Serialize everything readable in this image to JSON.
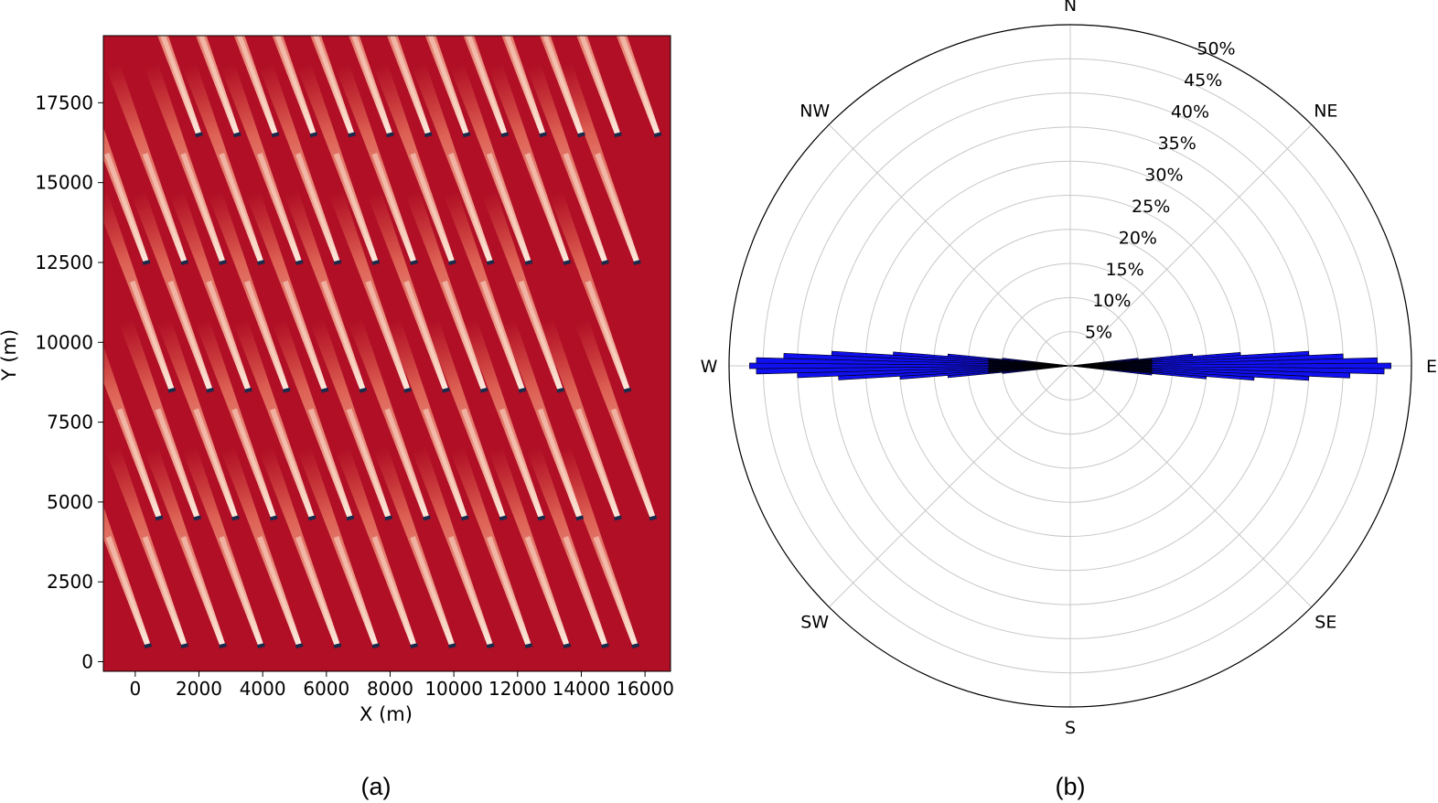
{
  "chart_data": [
    {
      "type": "heatmap",
      "panel_label": "(a)",
      "xlabel": "X (m)",
      "ylabel": "Y (m)",
      "xlim": [
        -1000,
        16800
      ],
      "ylim": [
        -300,
        19600
      ],
      "x_ticks": [
        0,
        2000,
        4000,
        6000,
        8000,
        10000,
        12000,
        14000,
        16000
      ],
      "x_tick_labels": [
        "0",
        "2000",
        "4000",
        "6000",
        "8000",
        "10000",
        "12000",
        "14000",
        "16000"
      ],
      "y_ticks": [
        0,
        2500,
        5000,
        7500,
        10000,
        12500,
        15000,
        17500
      ],
      "y_tick_labels": [
        "0",
        "2500",
        "5000",
        "7500",
        "10000",
        "12500",
        "15000",
        "17500"
      ],
      "colors": {
        "background": "#b00f25",
        "wake_core": "#fbe2d2",
        "wake_mid": "#e7644d",
        "turbine": "#1b2a4a"
      },
      "turbine_rows": [
        {
          "y": 500,
          "x": [
            400,
            1550,
            2750,
            3950,
            5150,
            6350,
            7550,
            8750,
            9950,
            11150,
            12350,
            13550,
            14750,
            15700
          ]
        },
        {
          "y": 4500,
          "x": [
            750,
            1950,
            3150,
            4350,
            5550,
            6750,
            7950,
            9150,
            10350,
            11550,
            12750,
            13950,
            15150,
            16250
          ]
        },
        {
          "y": 8500,
          "x": [
            1150,
            2350,
            3550,
            4750,
            5950,
            7150,
            8550,
            9750,
            10950,
            12150,
            13350,
            15450
          ]
        },
        {
          "y": 12500,
          "x": [
            350,
            1550,
            2750,
            3950,
            5150,
            6350,
            7550,
            8750,
            9950,
            11150,
            12350,
            13550,
            14750,
            15750
          ]
        },
        {
          "y": 16500,
          "x": [
            2000,
            3200,
            4400,
            5600,
            6800,
            8000,
            9200,
            10400,
            11600,
            12800,
            14000,
            15150,
            16400
          ]
        }
      ]
    },
    {
      "type": "polar-bar",
      "panel_label": "(b)",
      "direction_labels": [
        "N",
        "NE",
        "E",
        "SE",
        "S",
        "SW",
        "W",
        "NW"
      ],
      "radial_ticks": [
        5,
        10,
        15,
        20,
        25,
        30,
        35,
        40,
        45,
        50
      ],
      "radial_tick_labels": [
        "5%",
        "10%",
        "15%",
        "20%",
        "25%",
        "30%",
        "35%",
        "40%",
        "45%",
        "50%"
      ],
      "r_max": 50,
      "colors": {
        "bar": "#1010f0",
        "bar_edge": "#000000",
        "grid": "#c8c8c8"
      },
      "east_bins": {
        "angles_deg": [
          84,
          85,
          86,
          87,
          88,
          89,
          90,
          91,
          92,
          93,
          94,
          95,
          96
        ],
        "percent": [
          10,
          18,
          25,
          35,
          40,
          45,
          47,
          46,
          41,
          35,
          27,
          20,
          12
        ]
      },
      "west_bins": {
        "angles_deg": [
          264,
          265,
          266,
          267,
          268,
          269,
          270,
          271,
          272,
          273,
          274,
          275,
          276
        ],
        "percent": [
          10,
          18,
          25,
          34,
          40,
          46,
          47,
          46,
          42,
          35,
          26,
          18,
          10
        ]
      }
    }
  ]
}
